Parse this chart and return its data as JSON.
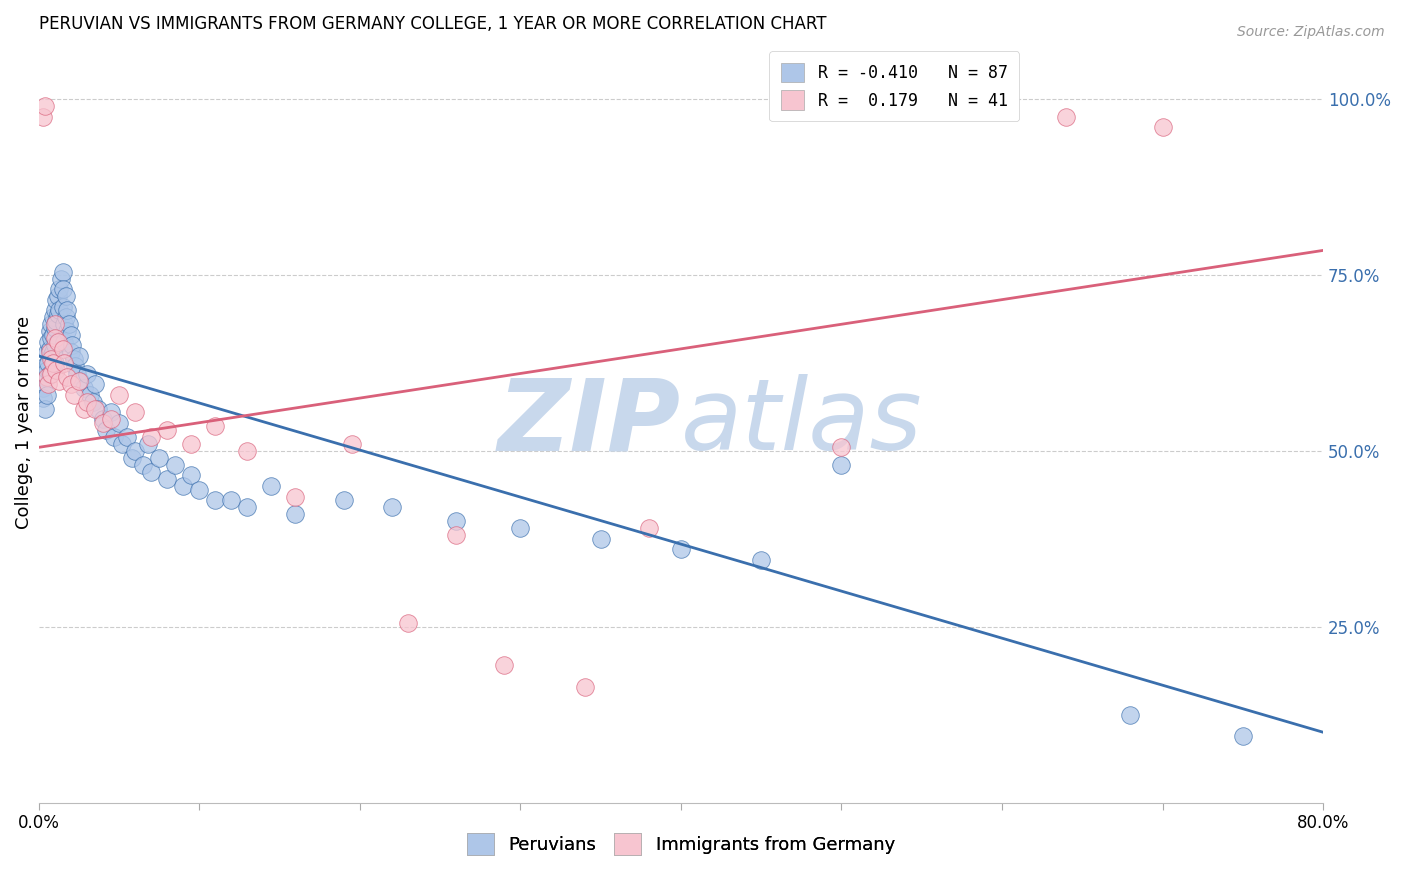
{
  "title": "PERUVIAN VS IMMIGRANTS FROM GERMANY COLLEGE, 1 YEAR OR MORE CORRELATION CHART",
  "source": "Source: ZipAtlas.com",
  "ylabel": "College, 1 year or more",
  "xlim": [
    0.0,
    0.8
  ],
  "ylim": [
    0.0,
    1.08
  ],
  "xticks": [
    0.0,
    0.1,
    0.2,
    0.3,
    0.4,
    0.5,
    0.6,
    0.7,
    0.8
  ],
  "xticklabels": [
    "0.0%",
    "",
    "",
    "",
    "",
    "",
    "",
    "",
    "80.0%"
  ],
  "yticks_right": [
    0.25,
    0.5,
    0.75,
    1.0
  ],
  "yticklabels_right": [
    "25.0%",
    "50.0%",
    "75.0%",
    "100.0%"
  ],
  "legend_blue_label": "R = -0.410   N = 87",
  "legend_pink_label": "R =  0.179   N = 41",
  "legend_bottom_blue": "Peruvians",
  "legend_bottom_pink": "Immigrants from Germany",
  "blue_color": "#aec6e8",
  "blue_line_color": "#3a6fad",
  "pink_color": "#f7c5d0",
  "pink_line_color": "#d9607a",
  "blue_line_y_start": 0.635,
  "blue_line_y_end": 0.1,
  "pink_line_y_start": 0.505,
  "pink_line_y_end": 0.785,
  "blue_scatter_x": [
    0.002,
    0.003,
    0.003,
    0.004,
    0.004,
    0.005,
    0.005,
    0.005,
    0.006,
    0.006,
    0.007,
    0.007,
    0.007,
    0.008,
    0.008,
    0.008,
    0.009,
    0.009,
    0.009,
    0.01,
    0.01,
    0.01,
    0.01,
    0.011,
    0.011,
    0.012,
    0.012,
    0.013,
    0.013,
    0.014,
    0.015,
    0.015,
    0.015,
    0.016,
    0.016,
    0.017,
    0.017,
    0.018,
    0.018,
    0.019,
    0.02,
    0.02,
    0.021,
    0.022,
    0.023,
    0.024,
    0.025,
    0.026,
    0.028,
    0.03,
    0.032,
    0.034,
    0.035,
    0.037,
    0.04,
    0.042,
    0.045,
    0.047,
    0.05,
    0.052,
    0.055,
    0.058,
    0.06,
    0.065,
    0.068,
    0.07,
    0.075,
    0.08,
    0.085,
    0.09,
    0.095,
    0.1,
    0.11,
    0.12,
    0.13,
    0.145,
    0.16,
    0.19,
    0.22,
    0.26,
    0.3,
    0.35,
    0.4,
    0.45,
    0.5,
    0.68,
    0.75
  ],
  "blue_scatter_y": [
    0.605,
    0.59,
    0.575,
    0.62,
    0.56,
    0.64,
    0.615,
    0.58,
    0.655,
    0.625,
    0.67,
    0.645,
    0.61,
    0.68,
    0.66,
    0.635,
    0.69,
    0.665,
    0.64,
    0.7,
    0.675,
    0.65,
    0.625,
    0.715,
    0.685,
    0.72,
    0.695,
    0.73,
    0.7,
    0.745,
    0.755,
    0.73,
    0.705,
    0.68,
    0.655,
    0.72,
    0.69,
    0.7,
    0.67,
    0.68,
    0.665,
    0.64,
    0.65,
    0.63,
    0.62,
    0.61,
    0.635,
    0.6,
    0.59,
    0.61,
    0.58,
    0.57,
    0.595,
    0.56,
    0.545,
    0.53,
    0.555,
    0.52,
    0.54,
    0.51,
    0.52,
    0.49,
    0.5,
    0.48,
    0.51,
    0.47,
    0.49,
    0.46,
    0.48,
    0.45,
    0.465,
    0.445,
    0.43,
    0.43,
    0.42,
    0.45,
    0.41,
    0.43,
    0.42,
    0.4,
    0.39,
    0.375,
    0.36,
    0.345,
    0.48,
    0.125,
    0.095
  ],
  "pink_scatter_x": [
    0.003,
    0.004,
    0.005,
    0.006,
    0.007,
    0.008,
    0.008,
    0.009,
    0.01,
    0.01,
    0.011,
    0.012,
    0.013,
    0.015,
    0.016,
    0.018,
    0.02,
    0.022,
    0.025,
    0.028,
    0.03,
    0.035,
    0.04,
    0.045,
    0.05,
    0.06,
    0.07,
    0.08,
    0.095,
    0.11,
    0.13,
    0.16,
    0.195,
    0.23,
    0.26,
    0.29,
    0.34,
    0.38,
    0.5,
    0.64,
    0.7
  ],
  "pink_scatter_y": [
    0.975,
    0.99,
    0.605,
    0.595,
    0.64,
    0.63,
    0.61,
    0.625,
    0.68,
    0.66,
    0.615,
    0.655,
    0.6,
    0.645,
    0.625,
    0.605,
    0.595,
    0.58,
    0.6,
    0.56,
    0.57,
    0.56,
    0.54,
    0.545,
    0.58,
    0.555,
    0.52,
    0.53,
    0.51,
    0.535,
    0.5,
    0.435,
    0.51,
    0.255,
    0.38,
    0.195,
    0.165,
    0.39,
    0.505,
    0.975,
    0.96
  ],
  "watermark_zip": "ZIP",
  "watermark_atlas": "atlas",
  "watermark_color": "#c8d8ec",
  "background_color": "#ffffff",
  "grid_color": "#cccccc"
}
